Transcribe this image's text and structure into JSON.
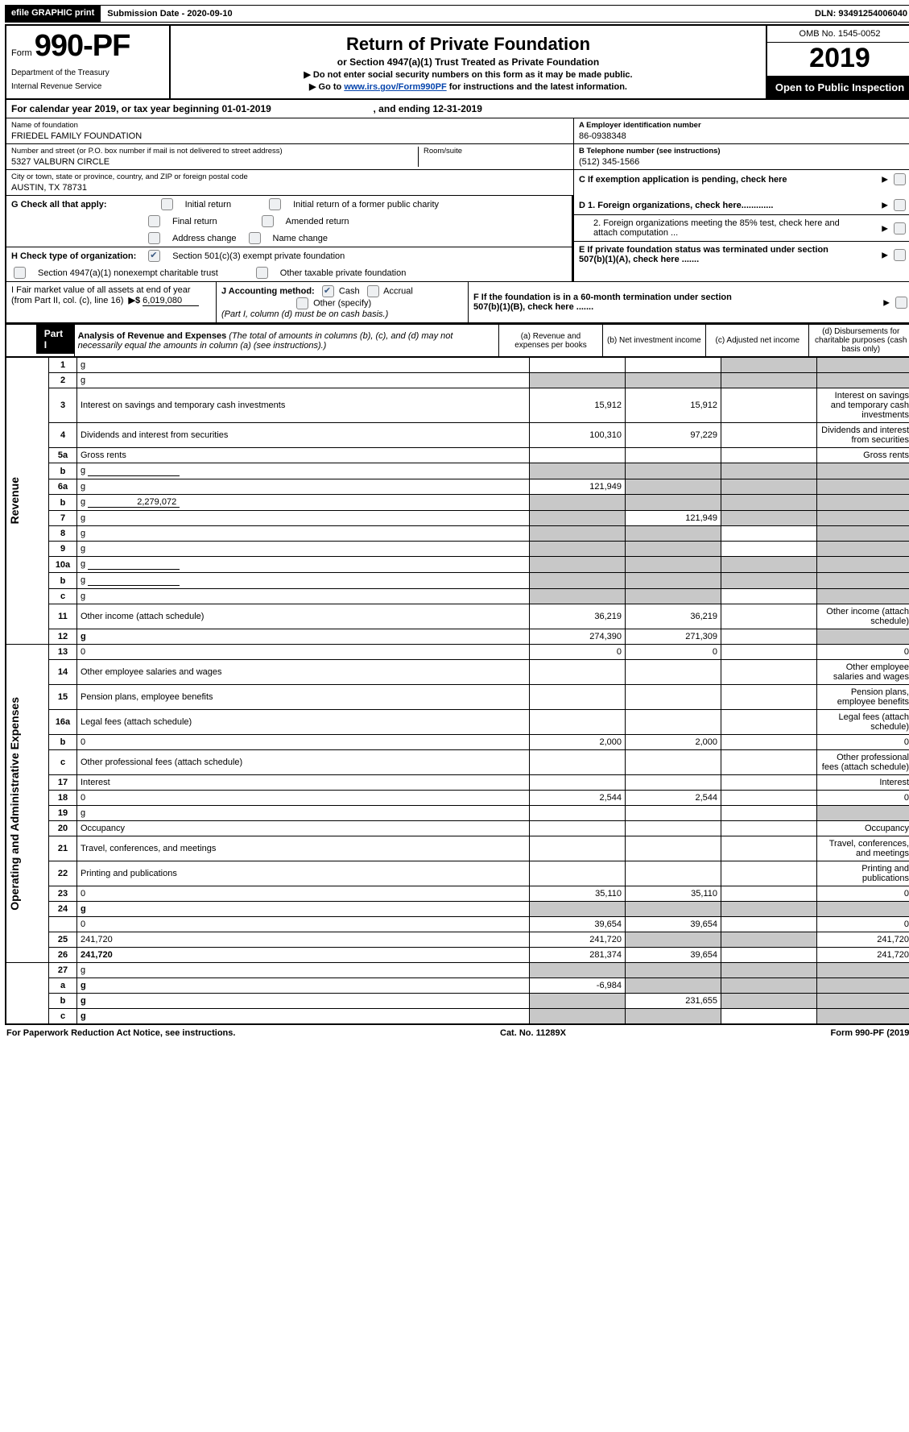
{
  "topbar": {
    "efile": "efile GRAPHIC print",
    "submission": "Submission Date - 2020-09-10",
    "dln_label": "DLN:",
    "dln": "93491254006040"
  },
  "header": {
    "form_word": "Form",
    "form_no": "990-PF",
    "dept1": "Department of the Treasury",
    "dept2": "Internal Revenue Service",
    "title": "Return of Private Foundation",
    "subtitle": "or Section 4947(a)(1) Trust Treated as Private Foundation",
    "note1": "▶ Do not enter social security numbers on this form as it may be made public.",
    "note2_a": "▶ Go to ",
    "note2_link": "www.irs.gov/Form990PF",
    "note2_b": " for instructions and the latest information.",
    "omb": "OMB No. 1545-0052",
    "year": "2019",
    "open": "Open to Public Inspection"
  },
  "cal": {
    "line_a": "For calendar year 2019, or tax year beginning 01-01-2019",
    "line_b": ", and ending 12-31-2019"
  },
  "info": {
    "name_lab": "Name of foundation",
    "name": "FRIEDEL FAMILY FOUNDATION",
    "addr_lab": "Number and street (or P.O. box number if mail is not delivered to street address)",
    "addr": "5327 VALBURN CIRCLE",
    "room_lab": "Room/suite",
    "city_lab": "City or town, state or province, country, and ZIP or foreign postal code",
    "city": "AUSTIN, TX  78731",
    "A_lab": "A Employer identification number",
    "A": "86-0938348",
    "B_lab": "B Telephone number (see instructions)",
    "B": "(512) 345-1566",
    "C": "C  If exemption application is pending, check here",
    "D1": "D 1. Foreign organizations, check here.............",
    "D2": "2. Foreign organizations meeting the 85% test, check here and attach computation ...",
    "E": "E   If private foundation status was terminated under section 507(b)(1)(A), check here .......",
    "F": "F   If the foundation is in a 60-month termination under section 507(b)(1)(B), check here ......."
  },
  "G": {
    "label": "G Check all that apply:",
    "opts": [
      "Initial return",
      "Initial return of a former public charity",
      "Final return",
      "Amended return",
      "Address change",
      "Name change"
    ]
  },
  "H": {
    "label": "H Check type of organization:",
    "o1": "Section 501(c)(3) exempt private foundation",
    "o2": "Section 4947(a)(1) nonexempt charitable trust",
    "o3": "Other taxable private foundation"
  },
  "I": {
    "lab": "I Fair market value of all assets at end of year (from Part II, col. (c), line 16)",
    "sym": "▶$",
    "val": "6,019,080"
  },
  "J": {
    "lab": "J Accounting method:",
    "cash": "Cash",
    "accrual": "Accrual",
    "other": "Other (specify)",
    "note": "(Part I, column (d) must be on cash basis.)"
  },
  "part1": {
    "tag": "Part I",
    "title": "Analysis of Revenue and Expenses",
    "note": " (The total of amounts in columns (b), (c), and (d) may not necessarily equal the amounts in column (a) (see instructions).)",
    "cols": {
      "a": "(a)    Revenue and expenses per books",
      "b": "(b)    Net investment income",
      "c": "(c)    Adjusted net income",
      "d": "(d)    Disbursements for charitable purposes (cash basis only)"
    }
  },
  "sections": {
    "rev": "Revenue",
    "oae": "Operating and Administrative Expenses"
  },
  "rows": [
    {
      "n": "1",
      "d": "g",
      "a": "",
      "b": "",
      "c": "g"
    },
    {
      "n": "2",
      "d": "g",
      "a": "g",
      "b": "g",
      "c": "g",
      "cb": true
    },
    {
      "n": "3",
      "d": "Interest on savings and temporary cash investments",
      "a": "15,912",
      "b": "15,912"
    },
    {
      "n": "4",
      "d": "Dividends and interest from securities",
      "a": "100,310",
      "b": "97,229"
    },
    {
      "n": "5a",
      "d": "Gross rents"
    },
    {
      "n": "b",
      "d": "g",
      "inp": true,
      "a": "g",
      "b": "g",
      "c": "g"
    },
    {
      "n": "6a",
      "d": "g",
      "a": "121,949",
      "b": "g",
      "c": "g"
    },
    {
      "n": "b",
      "d": "g",
      "inpv": "2,279,072",
      "a": "g",
      "b": "g",
      "c": "g"
    },
    {
      "n": "7",
      "d": "g",
      "a": "g",
      "b": "121,949",
      "c": "g"
    },
    {
      "n": "8",
      "d": "g",
      "a": "g",
      "b": "g"
    },
    {
      "n": "9",
      "d": "g",
      "a": "g",
      "b": "g"
    },
    {
      "n": "10a",
      "d": "g",
      "inp": true,
      "a": "g",
      "b": "g",
      "c": "g"
    },
    {
      "n": "b",
      "d": "g",
      "inp": true,
      "a": "g",
      "b": "g",
      "c": "g"
    },
    {
      "n": "c",
      "d": "g",
      "a": "g",
      "b": "g"
    },
    {
      "n": "11",
      "d": "Other income (attach schedule)",
      "a": "36,219",
      "b": "36,219"
    },
    {
      "n": "12",
      "d": "g",
      "bold": true,
      "a": "274,390",
      "b": "271,309"
    }
  ],
  "oae_rows": [
    {
      "n": "13",
      "d": "0",
      "a": "0",
      "b": "0"
    },
    {
      "n": "14",
      "d": "Other employee salaries and wages"
    },
    {
      "n": "15",
      "d": "Pension plans, employee benefits"
    },
    {
      "n": "16a",
      "d": "Legal fees (attach schedule)"
    },
    {
      "n": "b",
      "d": "0",
      "a": "2,000",
      "b": "2,000"
    },
    {
      "n": "c",
      "d": "Other professional fees (attach schedule)"
    },
    {
      "n": "17",
      "d": "Interest"
    },
    {
      "n": "18",
      "d": "0",
      "a": "2,544",
      "b": "2,544"
    },
    {
      "n": "19",
      "d": "g"
    },
    {
      "n": "20",
      "d": "Occupancy"
    },
    {
      "n": "21",
      "d": "Travel, conferences, and meetings"
    },
    {
      "n": "22",
      "d": "Printing and publications"
    },
    {
      "n": "23",
      "d": "0",
      "a": "35,110",
      "b": "35,110"
    },
    {
      "n": "24",
      "d": "g",
      "bold": true,
      "a": "g",
      "b": "g",
      "c": "g"
    },
    {
      "n": "",
      "d": "0",
      "a": "39,654",
      "b": "39,654"
    },
    {
      "n": "25",
      "d": "241,720",
      "a": "241,720",
      "b": "g",
      "c": "g"
    },
    {
      "n": "26",
      "d": "241,720",
      "bold": true,
      "a": "281,374",
      "b": "39,654",
      "tall": true
    }
  ],
  "bottom": [
    {
      "n": "27",
      "d": "g",
      "a": "g",
      "b": "g",
      "c": "g"
    },
    {
      "n": "a",
      "d": "g",
      "bold": true,
      "a": "-6,984",
      "b": "g",
      "c": "g"
    },
    {
      "n": "b",
      "d": "g",
      "bold": true,
      "a": "g",
      "b": "231,655",
      "c": "g"
    },
    {
      "n": "c",
      "d": "g",
      "bold": true,
      "a": "g",
      "b": "g"
    }
  ],
  "footer": {
    "left": "For Paperwork Reduction Act Notice, see instructions.",
    "mid": "Cat. No. 11289X",
    "right": "Form 990-PF (2019)"
  }
}
